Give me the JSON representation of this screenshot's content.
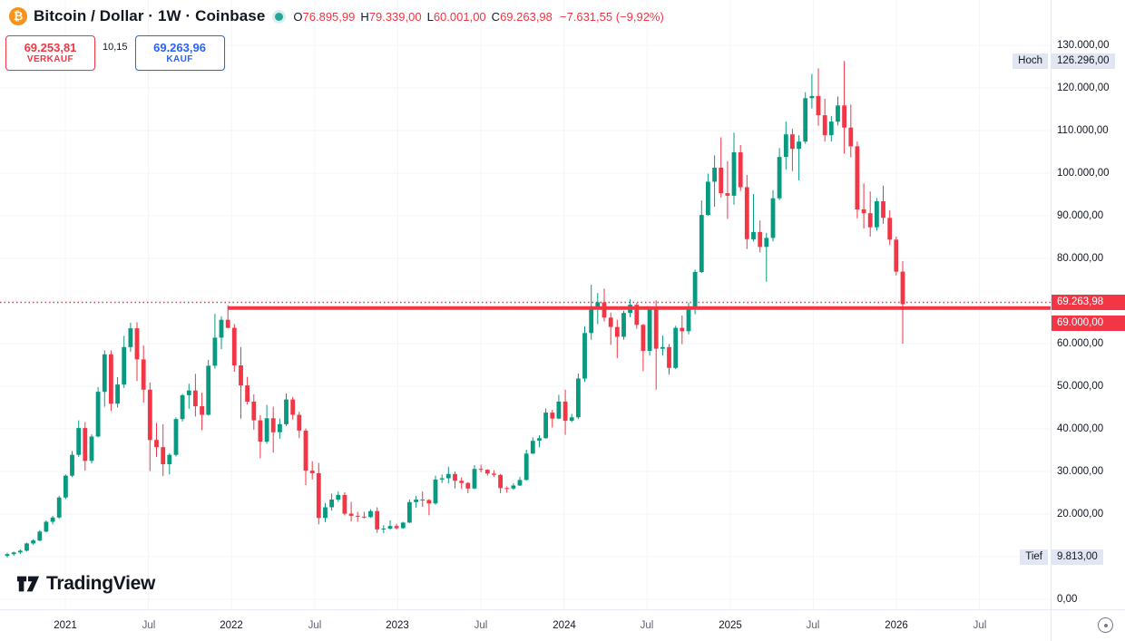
{
  "colors": {
    "up": "#089981",
    "down": "#F23645",
    "line_red": "#F23645",
    "accent_blue": "#2962FF",
    "btc_orange": "#F7931A",
    "status_green": "#26a69a",
    "marker_chip_bg": "#e1e6f2"
  },
  "header": {
    "symbol_title": "Bitcoin / Dollar · 1W · Coinbase",
    "btc_glyph": "₿",
    "ohlc": {
      "open_label": "O",
      "open": "76.895,99",
      "high_label": "H",
      "high": "79.339,00",
      "low_label": "L",
      "low": "60.001,00",
      "close_label": "C",
      "close": "69.263,98",
      "change": "−7.631,55 (−9,92%)"
    }
  },
  "trade_panel": {
    "sell_price": "69.253,81",
    "sell_label": "VERKAUF",
    "spread": "10,15",
    "buy_price": "69.263,96",
    "buy_label": "KAUF"
  },
  "price_axis": {
    "labels": [
      {
        "text": "130.000,00",
        "price": 130000,
        "style": "default"
      },
      {
        "text": "126.296,00",
        "price": 126296,
        "style": "hl",
        "prefix": "Hoch"
      },
      {
        "text": "120.000,00",
        "price": 120000,
        "style": "default"
      },
      {
        "text": "110.000,00",
        "price": 110000,
        "style": "default"
      },
      {
        "text": "100.000,00",
        "price": 100000,
        "style": "default"
      },
      {
        "text": "90.000,00",
        "price": 90000,
        "style": "default"
      },
      {
        "text": "80.000,00",
        "price": 80000,
        "style": "default"
      },
      {
        "text": "69.263,98",
        "price": 69263.98,
        "style": "red",
        "dy": -2
      },
      {
        "text": "69.000,00",
        "price": 69000,
        "style": "red",
        "dy": 20
      },
      {
        "text": "60.000,00",
        "price": 60000,
        "style": "default"
      },
      {
        "text": "50.000,00",
        "price": 50000,
        "style": "default"
      },
      {
        "text": "40.000,00",
        "price": 40000,
        "style": "default"
      },
      {
        "text": "30.000,00",
        "price": 30000,
        "style": "default"
      },
      {
        "text": "20.000,00",
        "price": 20000,
        "style": "default"
      },
      {
        "text": "9.813,00",
        "price": 9813,
        "style": "hl",
        "prefix": "Tief"
      },
      {
        "text": "0,00",
        "price": 0,
        "style": "default"
      }
    ]
  },
  "time_axis": {
    "labels": [
      {
        "text": "2021",
        "type": "year"
      },
      {
        "text": "Jul",
        "type": "month"
      },
      {
        "text": "2022",
        "type": "year"
      },
      {
        "text": "Jul",
        "type": "month"
      },
      {
        "text": "2023",
        "type": "year"
      },
      {
        "text": "Jul",
        "type": "month"
      },
      {
        "text": "2024",
        "type": "year"
      },
      {
        "text": "Jul",
        "type": "month"
      },
      {
        "text": "2025",
        "type": "year"
      },
      {
        "text": "Jul",
        "type": "month"
      },
      {
        "text": "2026",
        "type": "year"
      },
      {
        "text": "Jul",
        "type": "month"
      }
    ]
  },
  "footer": {
    "logo_text": "TradingView"
  },
  "chart_data": {
    "type": "candlestick",
    "title": "Bitcoin / Dollar",
    "interval": "1W",
    "exchange": "Coinbase",
    "ylim": [
      0,
      140000
    ],
    "grid": true,
    "x_range_label": "Sep 2020 – Jan 2026",
    "current_candle": {
      "open": 76895.99,
      "high": 79339.0,
      "low": 60001.0,
      "close": 69263.98,
      "change": -7631.55,
      "change_pct": -9.92
    },
    "levels": {
      "horizontal_line_price": 69000,
      "price_line": 69263.98,
      "line_color": "#F23645"
    },
    "high_marker": {
      "label": "Hoch",
      "price": 126296
    },
    "low_marker": {
      "label": "Tief",
      "price": 9813
    },
    "gridline_prices": [
      0,
      10000,
      20000,
      30000,
      40000,
      50000,
      60000,
      70000,
      80000,
      90000,
      100000,
      110000,
      120000,
      130000
    ],
    "units": "USD, candle values in thousands [open,high,low,close], ~bi-weekly sampling of the weekly chart",
    "candles_k": [
      [
        10.2,
        10.9,
        9.813,
        10.6
      ],
      [
        10.6,
        11.2,
        10.2,
        11.0
      ],
      [
        11.0,
        11.7,
        10.6,
        11.4
      ],
      [
        11.4,
        13.3,
        11.2,
        13.1
      ],
      [
        13.1,
        14.1,
        12.8,
        13.8
      ],
      [
        13.8,
        16.2,
        13.6,
        15.9
      ],
      [
        15.9,
        18.5,
        15.7,
        18.2
      ],
      [
        18.2,
        19.6,
        17.6,
        19.2
      ],
      [
        19.2,
        24.3,
        18.9,
        23.9
      ],
      [
        23.9,
        29.3,
        23.5,
        29.0
      ],
      [
        29.0,
        34.8,
        28.7,
        33.9
      ],
      [
        33.9,
        42.0,
        33.4,
        40.2
      ],
      [
        40.2,
        41.6,
        30.2,
        32.5
      ],
      [
        32.5,
        38.7,
        31.9,
        38.2
      ],
      [
        38.2,
        49.8,
        38.0,
        48.7
      ],
      [
        48.7,
        58.4,
        45.2,
        57.5
      ],
      [
        57.5,
        58.4,
        44.2,
        45.9
      ],
      [
        45.9,
        52.1,
        45.0,
        50.4
      ],
      [
        50.4,
        61.8,
        49.6,
        59.2
      ],
      [
        59.2,
        64.9,
        58.1,
        63.6
      ],
      [
        63.6,
        65.0,
        51.2,
        56.3
      ],
      [
        56.3,
        59.6,
        46.1,
        49.2
      ],
      [
        49.2,
        50.9,
        30.1,
        37.4
      ],
      [
        37.4,
        41.4,
        33.4,
        35.7
      ],
      [
        35.7,
        41.1,
        28.9,
        31.7
      ],
      [
        31.7,
        34.3,
        29.3,
        33.9
      ],
      [
        33.9,
        42.7,
        33.5,
        42.3
      ],
      [
        42.3,
        48.2,
        41.7,
        47.9
      ],
      [
        47.9,
        50.6,
        44.7,
        49.0
      ],
      [
        49.0,
        52.9,
        42.9,
        45.3
      ],
      [
        45.3,
        48.5,
        39.7,
        43.3
      ],
      [
        43.3,
        56.2,
        43.1,
        54.8
      ],
      [
        54.8,
        67.0,
        54.1,
        61.4
      ],
      [
        61.4,
        66.4,
        58.7,
        65.6
      ],
      [
        65.6,
        69.0,
        63.6,
        63.7
      ],
      [
        63.7,
        64.6,
        53.4,
        54.9
      ],
      [
        54.9,
        59.2,
        42.4,
        50.2
      ],
      [
        50.2,
        52.2,
        45.7,
        46.4
      ],
      [
        46.4,
        48.1,
        39.8,
        42.0
      ],
      [
        42.0,
        43.2,
        33.1,
        37.0
      ],
      [
        37.0,
        45.6,
        36.5,
        42.5
      ],
      [
        42.5,
        45.2,
        34.4,
        39.2
      ],
      [
        39.2,
        42.4,
        37.7,
        41.1
      ],
      [
        41.1,
        48.3,
        40.7,
        46.9
      ],
      [
        46.9,
        47.5,
        42.2,
        43.3
      ],
      [
        43.3,
        44.0,
        37.8,
        39.6
      ],
      [
        39.6,
        40.1,
        26.8,
        30.2
      ],
      [
        30.2,
        32.4,
        28.1,
        29.6
      ],
      [
        29.6,
        32.0,
        17.6,
        19.1
      ],
      [
        19.1,
        22.6,
        18.1,
        21.6
      ],
      [
        21.6,
        24.8,
        20.8,
        23.4
      ],
      [
        23.4,
        25.3,
        22.9,
        24.5
      ],
      [
        24.5,
        25.1,
        19.7,
        20.1
      ],
      [
        20.1,
        22.9,
        18.3,
        19.6
      ],
      [
        19.6,
        20.5,
        18.2,
        19.4
      ],
      [
        19.4,
        20.5,
        19.0,
        19.3
      ],
      [
        19.3,
        21.1,
        19.1,
        20.7
      ],
      [
        20.7,
        21.6,
        15.6,
        16.4
      ],
      [
        16.4,
        17.4,
        15.5,
        16.6
      ],
      [
        16.6,
        18.5,
        16.3,
        17.2
      ],
      [
        17.2,
        17.7,
        16.4,
        16.7
      ],
      [
        16.7,
        18.2,
        16.6,
        18.0
      ],
      [
        18.0,
        23.4,
        17.9,
        22.8
      ],
      [
        22.8,
        24.3,
        21.5,
        23.4
      ],
      [
        23.4,
        25.3,
        21.7,
        23.3
      ],
      [
        23.3,
        23.5,
        19.7,
        22.5
      ],
      [
        22.5,
        29.0,
        22.2,
        28.1
      ],
      [
        28.1,
        29.3,
        27.3,
        28.4
      ],
      [
        28.4,
        31.1,
        27.2,
        29.4
      ],
      [
        29.4,
        30.0,
        26.0,
        27.8
      ],
      [
        27.8,
        28.6,
        25.9,
        27.3
      ],
      [
        27.3,
        27.5,
        24.9,
        26.0
      ],
      [
        26.0,
        31.5,
        25.8,
        30.6
      ],
      [
        30.6,
        31.6,
        29.8,
        30.4
      ],
      [
        30.4,
        30.5,
        29.0,
        29.5
      ],
      [
        29.5,
        30.3,
        28.7,
        29.2
      ],
      [
        29.2,
        29.4,
        24.9,
        26.1
      ],
      [
        26.1,
        26.5,
        25.0,
        26.0
      ],
      [
        26.0,
        27.2,
        25.7,
        26.7
      ],
      [
        26.7,
        28.7,
        26.6,
        28.0
      ],
      [
        28.0,
        35.1,
        27.9,
        34.2
      ],
      [
        34.2,
        38.0,
        34.1,
        37.2
      ],
      [
        37.2,
        38.5,
        35.7,
        37.8
      ],
      [
        37.8,
        44.8,
        37.7,
        43.8
      ],
      [
        43.8,
        44.5,
        40.3,
        42.4
      ],
      [
        42.4,
        48.0,
        42.3,
        46.4
      ],
      [
        46.4,
        49.2,
        38.6,
        41.9
      ],
      [
        41.9,
        43.5,
        41.6,
        42.7
      ],
      [
        42.7,
        53.0,
        42.3,
        51.8
      ],
      [
        51.8,
        64.1,
        51.0,
        62.5
      ],
      [
        62.5,
        73.8,
        60.9,
        68.6
      ],
      [
        68.6,
        71.9,
        64.6,
        69.7
      ],
      [
        69.7,
        72.9,
        65.2,
        66.1
      ],
      [
        66.1,
        67.3,
        59.7,
        63.9
      ],
      [
        63.9,
        65.6,
        56.6,
        61.6
      ],
      [
        61.6,
        67.7,
        60.9,
        67.2
      ],
      [
        67.2,
        70.4,
        66.2,
        69.1
      ],
      [
        69.1,
        69.6,
        63.5,
        64.4
      ],
      [
        64.4,
        64.6,
        53.5,
        58.3
      ],
      [
        58.3,
        68.3,
        57.2,
        68.0
      ],
      [
        68.0,
        70.2,
        49.2,
        58.8
      ],
      [
        58.8,
        61.9,
        57.2,
        59.2
      ],
      [
        59.2,
        59.9,
        52.7,
        54.3
      ],
      [
        54.3,
        64.2,
        54.0,
        63.7
      ],
      [
        63.7,
        66.6,
        59.9,
        62.9
      ],
      [
        62.9,
        69.6,
        62.2,
        68.1
      ],
      [
        68.1,
        77.4,
        66.9,
        76.8
      ],
      [
        76.8,
        93.6,
        76.6,
        90.2
      ],
      [
        90.2,
        99.9,
        90.0,
        98.0
      ],
      [
        98.0,
        104.2,
        92.1,
        101.3
      ],
      [
        101.3,
        108.4,
        94.3,
        95.3
      ],
      [
        95.3,
        102.8,
        89.3,
        94.7
      ],
      [
        94.7,
        109.5,
        92.6,
        104.9
      ],
      [
        104.9,
        106.6,
        95.8,
        96.7
      ],
      [
        96.7,
        99.6,
        82.2,
        84.5
      ],
      [
        84.5,
        95.1,
        84.0,
        86.2
      ],
      [
        86.2,
        88.9,
        81.4,
        82.7
      ],
      [
        82.7,
        86.0,
        74.5,
        84.8
      ],
      [
        84.8,
        96.0,
        84.0,
        94.1
      ],
      [
        94.1,
        105.9,
        93.7,
        103.8
      ],
      [
        103.8,
        112.1,
        100.8,
        109.1
      ],
      [
        109.1,
        110.4,
        100.5,
        105.7
      ],
      [
        105.7,
        108.9,
        98.3,
        107.4
      ],
      [
        107.4,
        119.0,
        106.9,
        117.6
      ],
      [
        117.6,
        123.3,
        115.2,
        118.1
      ],
      [
        118.1,
        124.6,
        111.1,
        113.6
      ],
      [
        113.6,
        117.5,
        107.4,
        108.9
      ],
      [
        108.9,
        113.4,
        107.4,
        112.1
      ],
      [
        112.1,
        118.0,
        111.2,
        115.9
      ],
      [
        115.9,
        126.296,
        104.6,
        110.7
      ],
      [
        110.7,
        116.1,
        103.7,
        106.3
      ],
      [
        106.3,
        107.4,
        89.4,
        91.5
      ],
      [
        91.5,
        97.6,
        87.0,
        90.6
      ],
      [
        90.6,
        95.7,
        85.1,
        87.3
      ],
      [
        87.3,
        94.2,
        86.5,
        93.4
      ],
      [
        93.4,
        97.1,
        88.1,
        89.5
      ],
      [
        89.5,
        91.3,
        83.1,
        84.4
      ],
      [
        84.4,
        85.1,
        76.0,
        76.9
      ],
      [
        76.896,
        79.339,
        60.001,
        69.264
      ]
    ]
  }
}
